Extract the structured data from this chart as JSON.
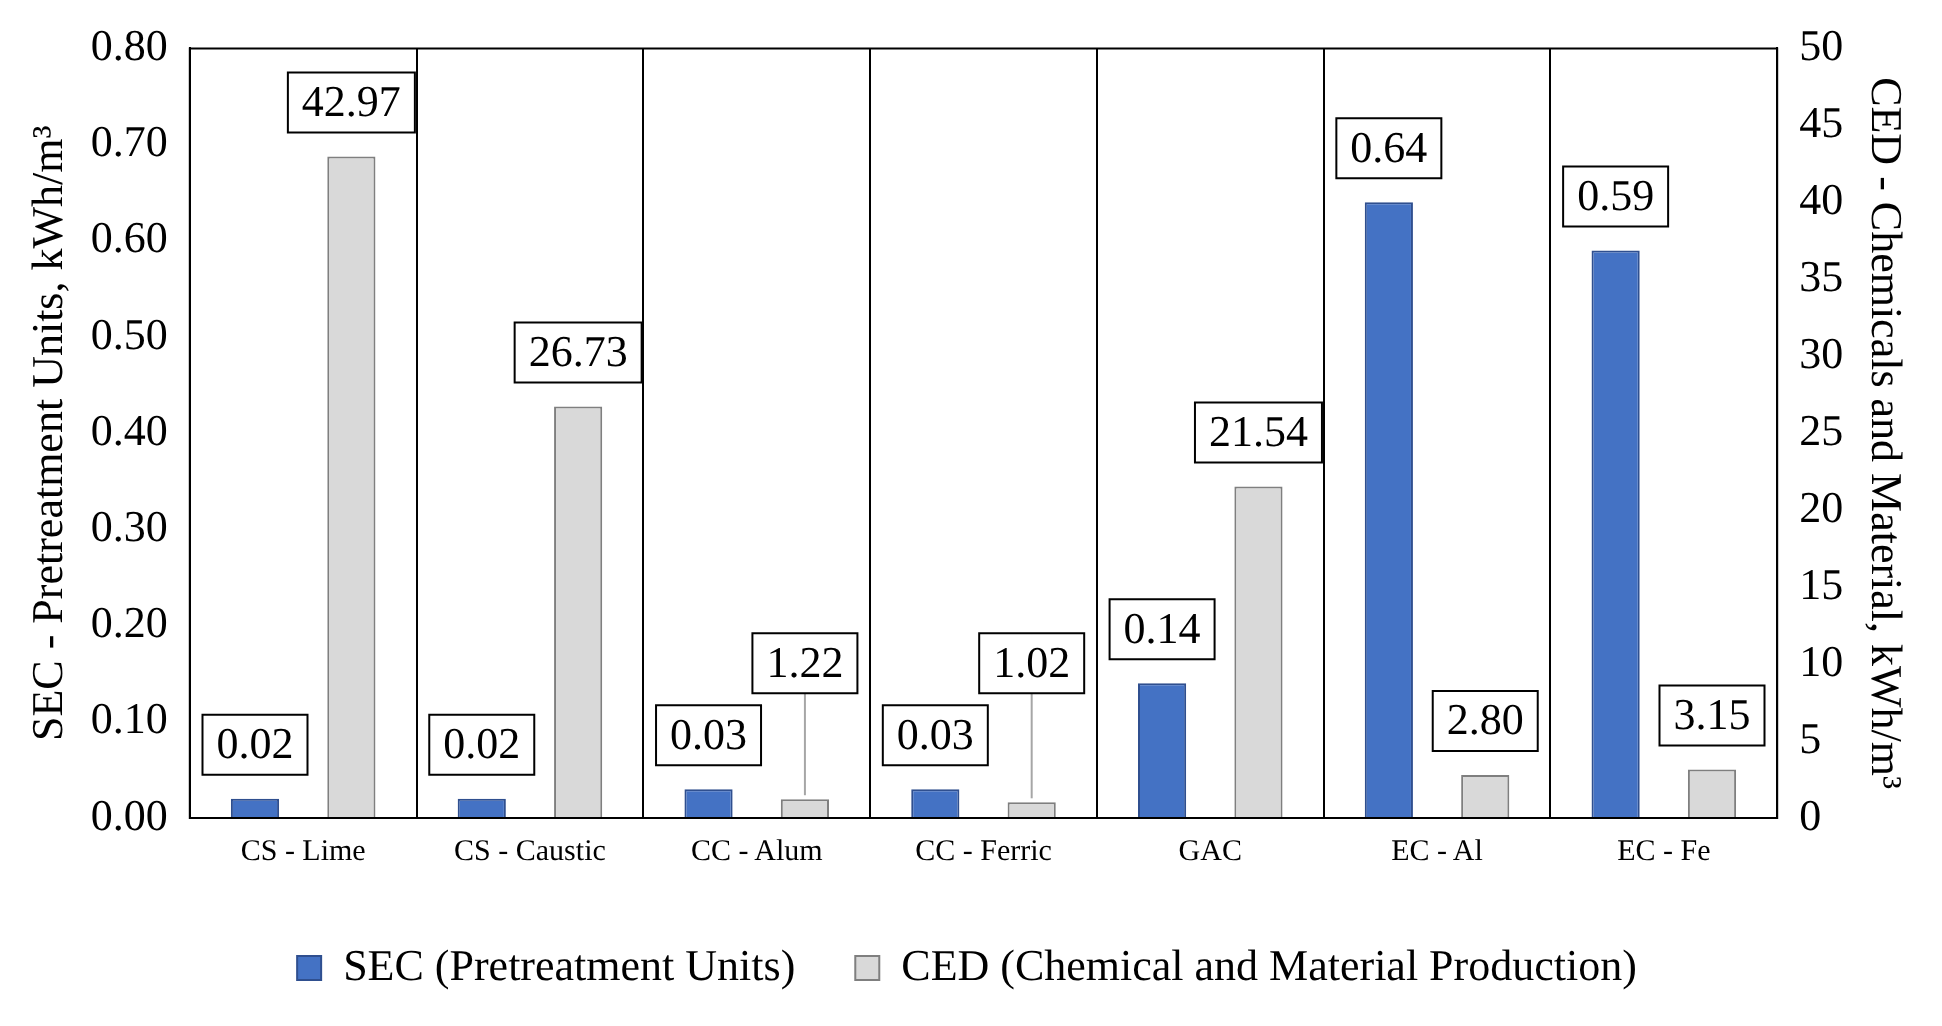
{
  "chart_data": {
    "type": "bar",
    "ylabel": "SEC - Pretreatment Units, kWh/m³",
    "y2label": "CED - Chemicals and Material, kWh/m³",
    "categories": [
      "CS - Lime",
      "CS - Caustic",
      "CC - Alum",
      "CC - Ferric",
      "GAC",
      "EC - Al",
      "EC - Fe"
    ],
    "series": [
      {
        "name": "SEC (Pretreatment Units)",
        "color": "#4472c4",
        "values": [
          0.02,
          0.02,
          0.03,
          0.03,
          0.14,
          0.64,
          0.59
        ],
        "value_labels": [
          "0.02",
          "0.02",
          "0.03",
          "0.03",
          "0.14",
          "0.64",
          "0.59"
        ]
      },
      {
        "name": "CED (Chemical and Material Production)",
        "color": "#d9d9d9",
        "axis": "y2",
        "values": [
          42.97,
          26.73,
          1.22,
          1.02,
          21.54,
          2.8,
          3.15
        ],
        "value_labels": [
          "42.97",
          "26.73",
          "1.22",
          "1.02",
          "21.54",
          "2.80",
          "3.15"
        ]
      }
    ],
    "ylim": [
      0,
      0.8
    ],
    "yticks": [
      {
        "value": 0,
        "label": "0.00"
      },
      {
        "value": 0.1,
        "label": "0.10"
      },
      {
        "value": 0.2,
        "label": "0.20"
      },
      {
        "value": 0.3,
        "label": "0.30"
      },
      {
        "value": 0.4,
        "label": "0.40"
      },
      {
        "value": 0.5,
        "label": "0.50"
      },
      {
        "value": 0.6,
        "label": "0.60"
      },
      {
        "value": 0.7,
        "label": "0.70"
      },
      {
        "value": 0.8,
        "label": "0.80"
      }
    ],
    "y2lim": [
      0,
      50
    ],
    "y2ticks": [
      0,
      5,
      10,
      15,
      20,
      25,
      30,
      35,
      40,
      45,
      50
    ],
    "grid": "x",
    "legend": "bottom"
  }
}
